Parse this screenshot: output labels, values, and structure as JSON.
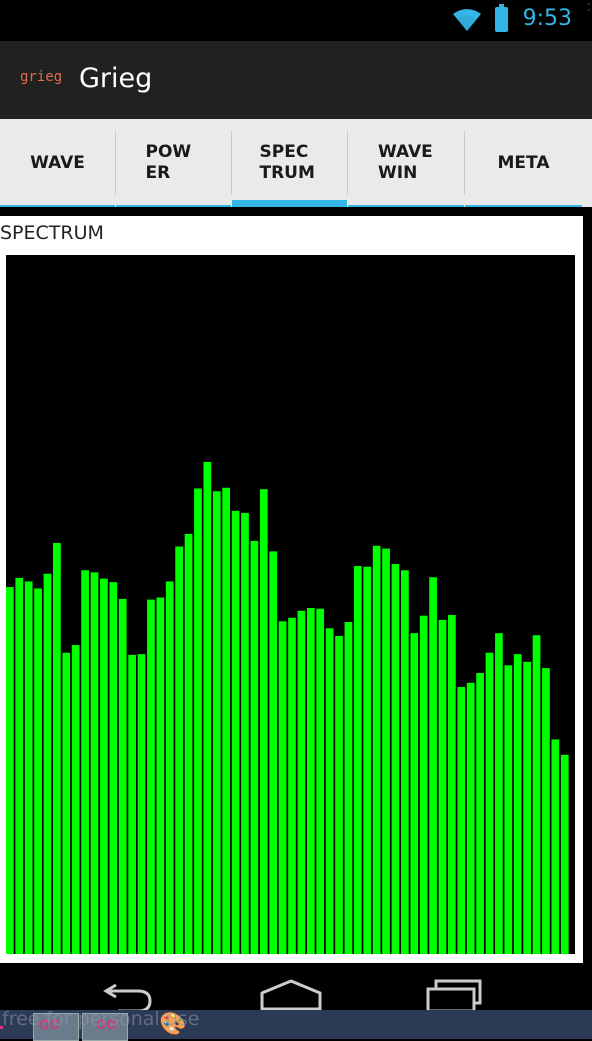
{
  "status_bar": {
    "time": "9:53"
  },
  "app": {
    "logo_text": "grieg",
    "title": "Grieg"
  },
  "tabs": [
    {
      "label": "WAVE",
      "active": false
    },
    {
      "label": "POWER",
      "active": false
    },
    {
      "label": "SPECTRUM",
      "active": true
    },
    {
      "label": "WAVE WIN",
      "active": false
    },
    {
      "label": "META",
      "active": false
    }
  ],
  "section": {
    "title": "SPECTRUM"
  },
  "chart_data": {
    "type": "bar",
    "bar_color": "#00ff00",
    "background": "#000000",
    "ylim": [
      0,
      100
    ],
    "values": [
      52.5,
      53.8,
      53.3,
      52.3,
      54.4,
      58.8,
      43.1,
      44.2,
      54.9,
      54.6,
      53.7,
      53.2,
      50.8,
      42.8,
      42.9,
      50.7,
      51.0,
      53.3,
      58.3,
      60.1,
      66.6,
      70.4,
      66.2,
      66.7,
      63.4,
      63.1,
      59.1,
      66.5,
      57.6,
      47.6,
      48.1,
      49.1,
      49.5,
      49.4,
      46.6,
      45.5,
      47.5,
      55.5,
      55.4,
      58.4,
      58.0,
      55.8,
      54.9,
      45.9,
      48.4,
      53.9,
      47.8,
      48.5,
      38.2,
      38.8,
      40.2,
      43.1,
      45.9,
      41.3,
      42.9,
      41.8,
      45.6,
      40.9,
      30.7,
      28.5
    ]
  },
  "watermark": {
    "text": "free for personal use"
  },
  "colors": {
    "accent": "#33b5e5",
    "action_bar": "#212121",
    "tab_bar": "#eaeaea"
  },
  "icons": [
    "wifi-icon",
    "battery-icon",
    "back-icon",
    "home-icon",
    "recent-apps-icon",
    "paint-palette-icon"
  ]
}
